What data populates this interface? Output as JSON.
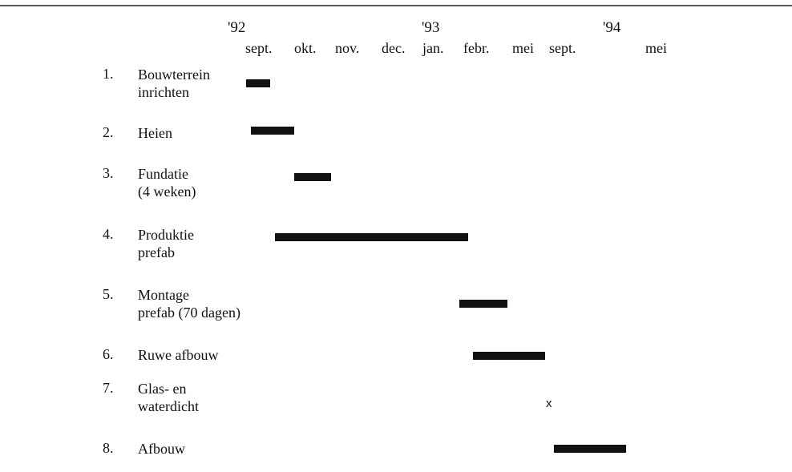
{
  "chart_data": {
    "type": "gantt",
    "years": [
      "'92",
      "'93",
      "'94"
    ],
    "months": [
      "sept.",
      "okt.",
      "nov.",
      "dec.",
      "jan.",
      "febr.",
      "mei",
      "sept.",
      "mei"
    ],
    "tasks": [
      {
        "num": "1.",
        "label": "Bouwterrein\ninrichten",
        "start": 0.0,
        "end": 0.5
      },
      {
        "num": "2.",
        "label": "Heien",
        "start": 0.1,
        "end": 1.0
      },
      {
        "num": "3.",
        "label": "Fundatie\n(4 weken)",
        "start": 1.0,
        "end": 1.9
      },
      {
        "num": "4.",
        "label": "Produktie\nprefab",
        "start": 0.6,
        "end": 5.1
      },
      {
        "num": "5.",
        "label": "Montage\nprefab (70 dagen)",
        "start": 4.9,
        "end": 5.9
      },
      {
        "num": "6.",
        "label": "Ruwe afbouw",
        "start": 5.2,
        "end": 6.9
      },
      {
        "num": "7.",
        "label": "Glas- en\nwaterdicht",
        "milestone": 7.0,
        "marker": "x"
      },
      {
        "num": "8.",
        "label": "Afbouw",
        "start": 7.1,
        "end": 8.6
      }
    ]
  }
}
